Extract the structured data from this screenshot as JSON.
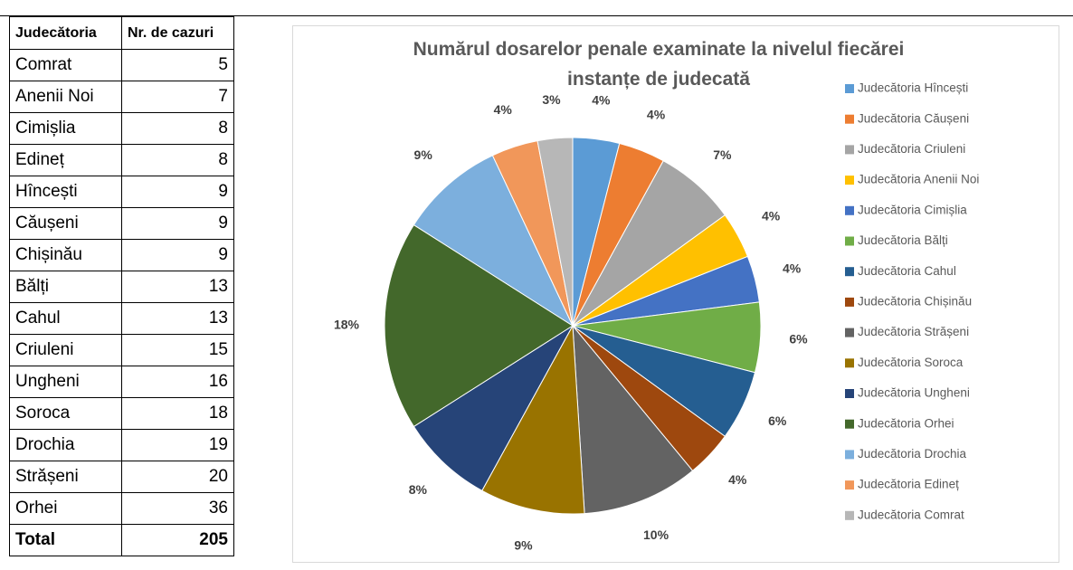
{
  "table": {
    "header": [
      "Judecătoria",
      "Nr. de cazuri"
    ],
    "rows": [
      [
        "Comrat",
        5
      ],
      [
        "Anenii Noi",
        7
      ],
      [
        "Cimișlia",
        8
      ],
      [
        "Edineț",
        8
      ],
      [
        "Hîncești",
        9
      ],
      [
        "Căușeni",
        9
      ],
      [
        "Chișinău",
        9
      ],
      [
        "Bălți",
        13
      ],
      [
        "Cahul",
        13
      ],
      [
        "Criuleni",
        15
      ],
      [
        "Ungheni",
        16
      ],
      [
        "Soroca",
        18
      ],
      [
        "Drochia",
        19
      ],
      [
        "Strășeni",
        20
      ],
      [
        "Orhei",
        36
      ]
    ],
    "total": [
      "Total",
      205
    ]
  },
  "chart_data": {
    "type": "pie",
    "title": "Numărul dosarelor penale examinate la nivelul fiecărei instanțe de judecată",
    "categories": [
      "Judecătoria Hîncești",
      "Judecătoria Căușeni",
      "Judecătoria Criuleni",
      "Judecătoria Anenii Noi",
      "Judecătoria Cimișlia",
      "Judecătoria Bălți",
      "Judecătoria Cahul",
      "Judecătoria Chișinău",
      "Judecătoria Strășeni",
      "Judecătoria Soroca",
      "Judecătoria Ungheni",
      "Judecătoria Orhei",
      "Judecătoria Drochia",
      "Judecătoria Edineț",
      "Judecătoria Comrat"
    ],
    "values": [
      4,
      4,
      7,
      4,
      4,
      6,
      6,
      4,
      10,
      9,
      8,
      18,
      9,
      4,
      3
    ],
    "value_labels": [
      "4%",
      "4%",
      "7%",
      "4%",
      "4%",
      "6%",
      "6%",
      "4%",
      "10%",
      "9%",
      "8%",
      "18%",
      "9%",
      "4%",
      "3%"
    ],
    "colors": [
      "#5b9bd5",
      "#ed7d31",
      "#a5a5a5",
      "#ffc000",
      "#4472c4",
      "#70ad47",
      "#255e91",
      "#9e480e",
      "#636363",
      "#997300",
      "#264478",
      "#43682b",
      "#7cafdd",
      "#f1975a",
      "#b7b7b7"
    ],
    "legend": "right"
  }
}
